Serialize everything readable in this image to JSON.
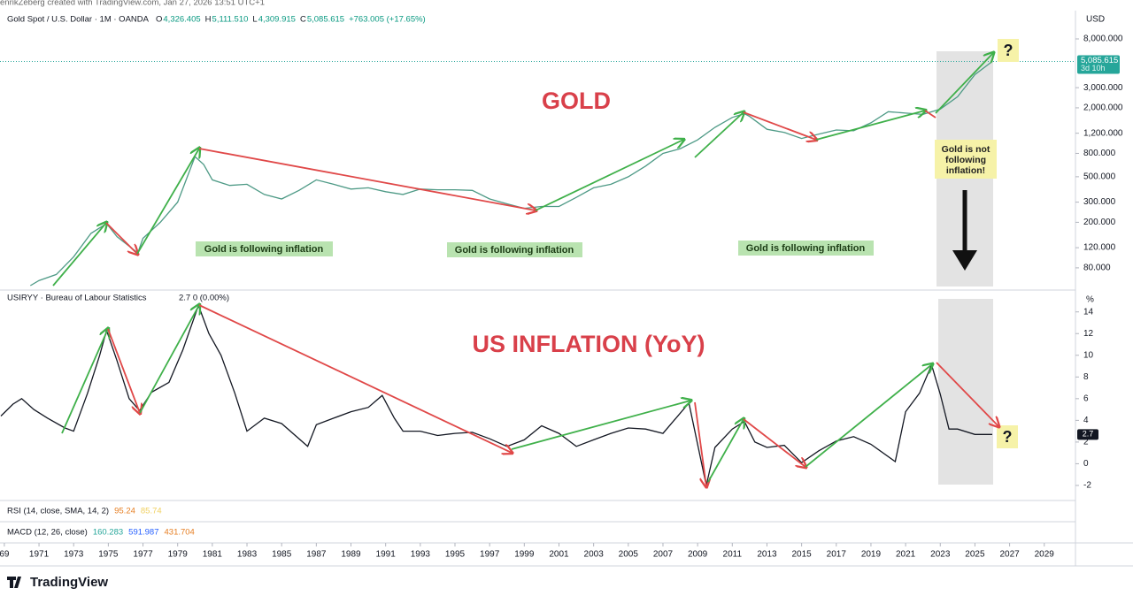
{
  "header": "enrikZeberg created with TradingView.com, Jan 27, 2026 13:51 UTC+1",
  "brand": "TradingView",
  "chart_data": [
    {
      "type": "line",
      "title": "GOLD",
      "symbol": "Gold Spot / U.S. Dollar · 1M · OANDA",
      "ohlc": [
        {
          "key": "O",
          "text": "4,326.405"
        },
        {
          "key": "H",
          "text": "5,111.510"
        },
        {
          "key": "L",
          "text": "4,309.915"
        },
        {
          "key": "C",
          "text": "5,085.615"
        }
      ],
      "change": "+763.005 (+17.65%)",
      "currency": "USD",
      "last_price": {
        "value": 5085.615,
        "label": "5,085.615"
      },
      "countdown": "3d 10h",
      "question": "?",
      "annotations": [
        "Gold is following inflation",
        "Gold is following inflation",
        "Gold is following inflation"
      ],
      "callout": [
        "Gold is not",
        "following",
        "inflation!"
      ],
      "color": "#4e9a86",
      "log_scale": true,
      "xlim": [
        1968.75,
        2030.8
      ],
      "ylim": [
        54,
        13400
      ],
      "yticks": [
        {
          "value": 8000,
          "label": "8,000.000"
        },
        {
          "value": 3000,
          "label": "3,000.000"
        },
        {
          "value": 2000,
          "label": "2,000.000"
        },
        {
          "value": 1200,
          "label": "1,200.000"
        },
        {
          "value": 800,
          "label": "800.000"
        },
        {
          "value": 500,
          "label": "500.000"
        },
        {
          "value": 300,
          "label": "300.000"
        },
        {
          "value": 200,
          "label": "200.000"
        },
        {
          "value": 120,
          "label": "120.000"
        },
        {
          "value": 80,
          "label": "80.000"
        }
      ],
      "x": [
        1970.5,
        1971,
        1972,
        1973,
        1974,
        1974.9,
        1975.5,
        1976.7,
        1977,
        1978,
        1979,
        1980,
        1980.5,
        1981,
        1982,
        1983,
        1984,
        1985,
        1986,
        1987,
        1988,
        1989,
        1990,
        1991,
        1992,
        1993,
        1994,
        1995,
        1996,
        1997,
        1998,
        1999,
        2000,
        2001,
        2002,
        2003,
        2004,
        2005,
        2006,
        2007,
        2008,
        2009,
        2010,
        2011,
        2011.7,
        2012,
        2013,
        2014,
        2015,
        2016,
        2017,
        2018,
        2019,
        2020,
        2021,
        2022,
        2023,
        2024,
        2025,
        2026
      ],
      "values": [
        56,
        62,
        70,
        100,
        160,
        195,
        150,
        108,
        145,
        200,
        300,
        750,
        640,
        470,
        420,
        430,
        350,
        320,
        380,
        470,
        430,
        390,
        400,
        370,
        350,
        390,
        385,
        385,
        380,
        320,
        290,
        265,
        275,
        275,
        330,
        400,
        430,
        500,
        620,
        800,
        880,
        1050,
        1350,
        1650,
        1780,
        1680,
        1300,
        1220,
        1080,
        1180,
        1280,
        1260,
        1480,
        1850,
        1800,
        1750,
        1950,
        2500,
        3900,
        5085
      ]
    },
    {
      "type": "line",
      "title": "US INFLATION (YoY)",
      "symbol": "USIRYY · Bureau of Labour Statistics",
      "status": "2.7  0 (0.00%)",
      "unit": "%",
      "question": "?",
      "last_value": 2.7,
      "color": "#131722",
      "xlim": [
        1968.75,
        2030.8
      ],
      "ylim": [
        -2.9,
        15.2
      ],
      "yticks": [
        14,
        12,
        10,
        8,
        6,
        4,
        2,
        0,
        -2
      ],
      "xticks": [
        {
          "value": 1969,
          "label": "69"
        },
        1971,
        1973,
        1975,
        1977,
        1979,
        1981,
        1983,
        1985,
        1987,
        1989,
        1991,
        1993,
        1995,
        1997,
        1999,
        2001,
        2003,
        2005,
        2007,
        2009,
        2011,
        2013,
        2015,
        2017,
        2019,
        2021,
        2023,
        2025,
        2027,
        2029
      ],
      "x": [
        1968.8,
        1969.5,
        1970,
        1970.7,
        1971.5,
        1972.5,
        1973,
        1973.8,
        1974.5,
        1974.9,
        1975.5,
        1976.2,
        1976.8,
        1977.5,
        1978.5,
        1979.3,
        1980.2,
        1980.8,
        1981.5,
        1982.3,
        1983,
        1984,
        1985,
        1986.5,
        1987,
        1988,
        1989,
        1990,
        1990.8,
        1991.5,
        1992,
        1993,
        1994,
        1995,
        1996,
        1997,
        1998,
        1999,
        2000,
        2001,
        2002,
        2003,
        2004,
        2005,
        2006,
        2007,
        2008.5,
        2009.5,
        2010,
        2011,
        2011.7,
        2012.3,
        2013,
        2014,
        2015,
        2016,
        2017,
        2018,
        2019,
        2020.4,
        2021,
        2021.8,
        2022.5,
        2023,
        2023.5,
        2024,
        2025,
        2026
      ],
      "values": [
        4.4,
        5.5,
        6.0,
        5.0,
        4.2,
        3.3,
        3.0,
        6.5,
        10.0,
        12.3,
        9.5,
        6.0,
        4.9,
        6.6,
        7.5,
        10.5,
        14.6,
        12.0,
        10.0,
        6.5,
        3.0,
        4.2,
        3.7,
        1.6,
        3.6,
        4.2,
        4.8,
        5.2,
        6.3,
        4.2,
        3.0,
        3.0,
        2.6,
        2.8,
        2.9,
        2.3,
        1.6,
        2.2,
        3.5,
        2.8,
        1.6,
        2.2,
        2.8,
        3.3,
        3.2,
        2.8,
        5.6,
        -2.0,
        1.5,
        3.2,
        3.9,
        2.0,
        1.5,
        1.7,
        0.1,
        1.2,
        2.1,
        2.5,
        1.8,
        0.2,
        4.8,
        6.5,
        9.1,
        6.4,
        3.2,
        3.2,
        2.7,
        2.7
      ]
    }
  ],
  "indicators": [
    {
      "label": "RSI (14, close, SMA, 14, 2)",
      "values": [
        "95.24",
        "85.74"
      ],
      "colors": [
        "#e67e22",
        "#f0d060"
      ]
    },
    {
      "label": "MACD (12, 26, close)",
      "values": [
        "160.283",
        "591.987",
        "431.704"
      ],
      "colors": [
        "#26a69a",
        "#2962ff",
        "#e67e22"
      ]
    }
  ]
}
